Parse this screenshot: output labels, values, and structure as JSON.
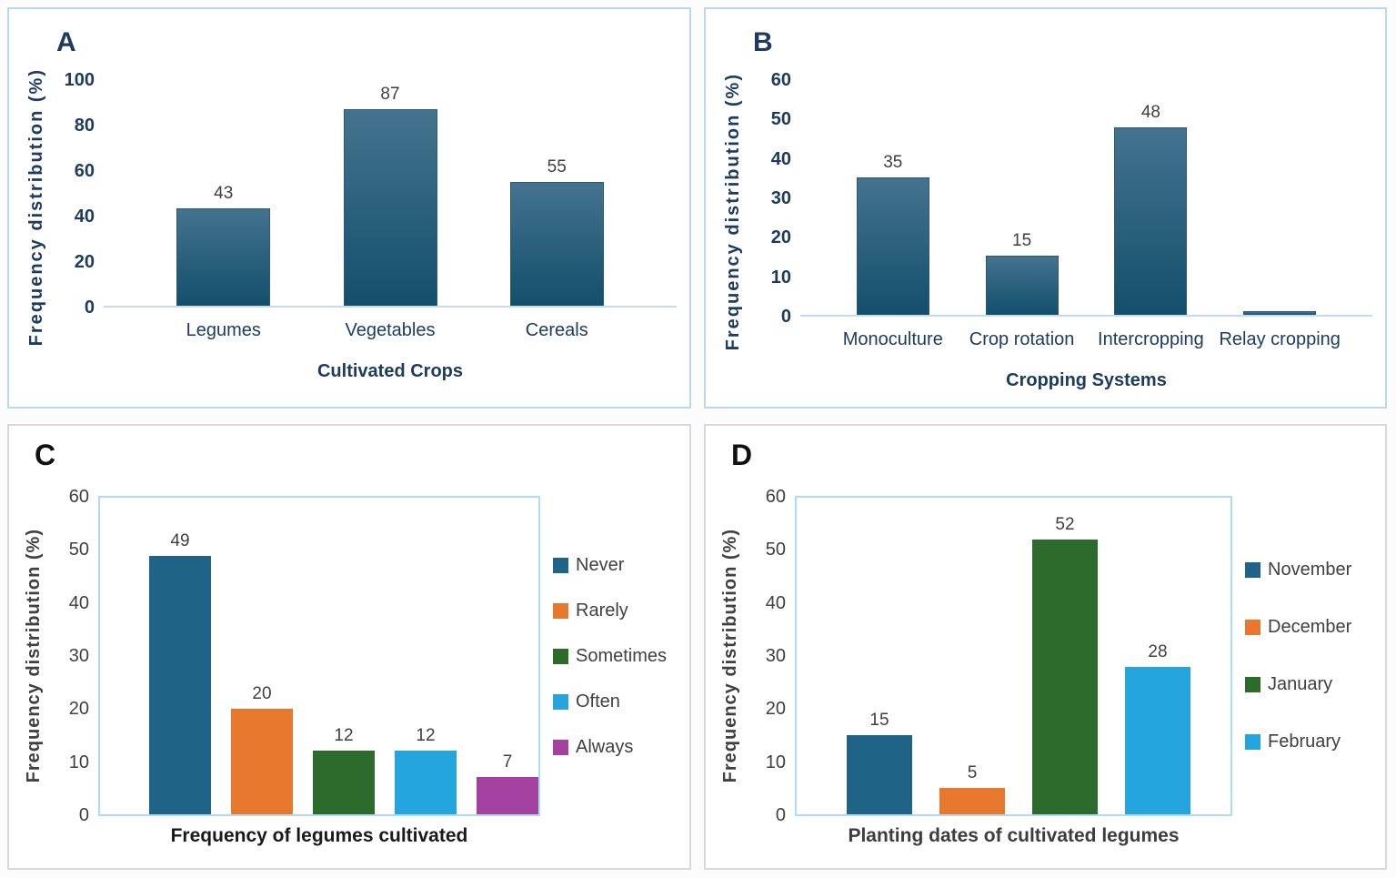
{
  "theme": {
    "panel_border_top": "#bdd7ee",
    "panel_border_bottom": "#d9d9d9",
    "plot_border_cd": "#a9def6",
    "baseline_ab": "#c3dcf0",
    "navy_text": "#1d3a5f",
    "gray_text": "#404040",
    "black_text": "#1a1a1a",
    "data_label_color": "#3f3f3f",
    "bar_grad_top": "#44738f",
    "bar_grad_bottom": "#134f6b",
    "bar_edge": "#2b5876",
    "flat_steel_blue": "#1f6386",
    "flat_orange": "#e8782e",
    "flat_green": "#2c6b2c",
    "flat_cyan": "#25a5de",
    "flat_magenta": "#a441a0"
  },
  "chart_data": [
    {
      "type": "bar",
      "panel_label": "A",
      "categories": [
        "Legumes",
        "Vegetables",
        "Cereals"
      ],
      "values": [
        43,
        87,
        55
      ],
      "data_labels": [
        "43",
        "87",
        "55"
      ],
      "xlabel": "Cultivated Crops",
      "ylabel": "Frequency distribution (%)",
      "ylim": [
        0,
        100
      ],
      "ytick_step": 20,
      "grid": false,
      "legend_position": "none",
      "bar_fill": "gradient-steel-blue"
    },
    {
      "type": "bar",
      "panel_label": "B",
      "categories": [
        "Monoculture",
        "Crop rotation",
        "Intercropping",
        "Relay cropping"
      ],
      "values": [
        35,
        15,
        48,
        1
      ],
      "data_labels": [
        "35",
        "15",
        "48",
        ""
      ],
      "xlabel": "Cropping Systems",
      "ylabel": "Frequency distribution (%)",
      "ylim": [
        0,
        60
      ],
      "ytick_step": 10,
      "grid": false,
      "legend_position": "none",
      "bar_fill": "gradient-steel-blue"
    },
    {
      "type": "bar",
      "panel_label": "C",
      "categories": [
        "Never",
        "Rarely",
        "Sometimes",
        "Often",
        "Always"
      ],
      "values": [
        49,
        20,
        12,
        12,
        7
      ],
      "data_labels": [
        "49",
        "20",
        "12",
        "12",
        "7"
      ],
      "xlabel": "Frequency of legumes cultivated",
      "ylabel": "Frequency distribution (%)",
      "ylim": [
        0,
        60
      ],
      "ytick_step": 10,
      "grid": false,
      "legend_position": "right",
      "bar_colors": [
        "#1f6386",
        "#e8782e",
        "#2c6b2c",
        "#25a5de",
        "#a441a0"
      ]
    },
    {
      "type": "bar",
      "panel_label": "D",
      "categories": [
        "November",
        "December",
        "January",
        "February"
      ],
      "values": [
        15,
        5,
        52,
        28
      ],
      "data_labels": [
        "15",
        "5",
        "52",
        "28"
      ],
      "xlabel": "Planting dates of cultivated legumes",
      "ylabel": "Frequency distribution (%)",
      "ylim": [
        0,
        60
      ],
      "ytick_step": 10,
      "grid": false,
      "legend_position": "right",
      "bar_colors": [
        "#1f6386",
        "#e8782e",
        "#2c6b2c",
        "#25a5de"
      ]
    }
  ]
}
